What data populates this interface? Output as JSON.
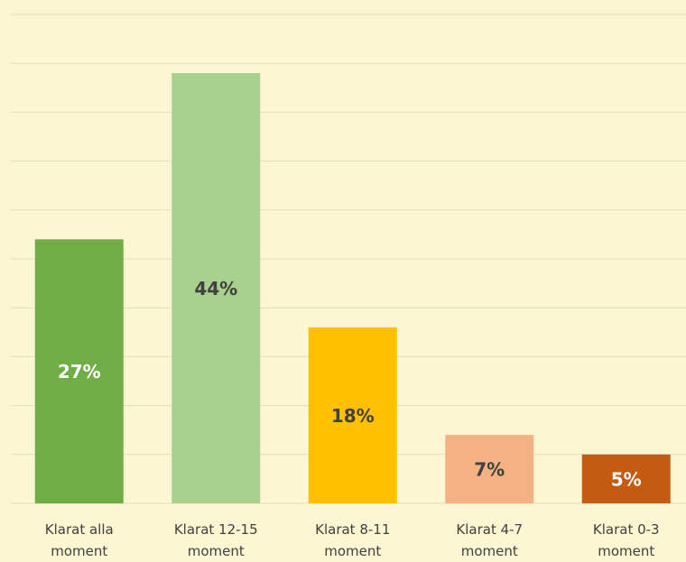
{
  "chart_data": {
    "type": "bar",
    "categories": [
      "Klarat alla moment",
      "Klarat 12-15 moment",
      "Klarat 8-11 moment",
      "Klarat 4-7 moment",
      "Klarat 0-3 moment"
    ],
    "values": [
      27,
      44,
      18,
      7,
      5
    ],
    "value_labels": [
      "27%",
      "44%",
      "18%",
      "7%",
      "5%"
    ],
    "colors": [
      "#70ad47",
      "#a9d18e",
      "#ffc000",
      "#f4b183",
      "#c55a11"
    ],
    "label_colors": [
      "#ffffff",
      "#404040",
      "#404040",
      "#404040",
      "#ffffff"
    ],
    "ylim": [
      0,
      50
    ],
    "yticks": [
      0,
      5,
      10,
      15,
      20,
      25,
      30,
      35,
      40,
      45,
      50
    ],
    "grid": true
  }
}
